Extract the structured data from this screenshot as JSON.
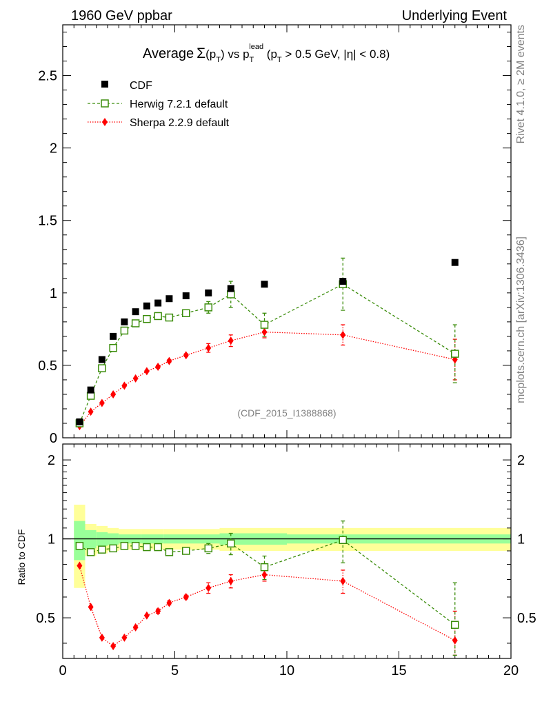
{
  "header": {
    "left": "1960 GeV ppbar",
    "right": "Underlying Event"
  },
  "side": {
    "rivet": "Rivet 4.1.0, ≥ 2M events",
    "mcplots": "mcplots.cern.ch [arXiv:1306.3436]"
  },
  "title": {
    "average": "Average",
    "sigma": "Σ",
    "pt_open": "(p",
    "T1": "T",
    "pt_close": ") vs p",
    "lead_sup": "lead",
    "T2": "T",
    "cut_open": " (p",
    "T3": "T",
    "cut_rest": " > 0.5 GeV, |η| < 0.8)"
  },
  "watermark": "(CDF_2015_I1388868)",
  "ratio_ylabel": "Ratio to CDF",
  "colors": {
    "data": "#000000",
    "herwig": "#3a8c0a",
    "sherpa": "#ff0000",
    "band_inner": "#99ff99",
    "band_outer": "#ffff99"
  },
  "chart_data": {
    "type": "scatter",
    "title": "Average Σ(pT) vs pT lead (pT > 0.5 GeV, |η| < 0.8)",
    "xlabel": "",
    "ylabel": "",
    "xlim": [
      0,
      20
    ],
    "ylim": [
      0,
      2.85
    ],
    "xticks": [
      0,
      5,
      10,
      15,
      20
    ],
    "yticks": [
      0.5,
      1,
      1.5,
      2,
      2.5
    ],
    "x": [
      0.75,
      1.25,
      1.75,
      2.25,
      2.75,
      3.25,
      3.75,
      4.25,
      4.75,
      5.5,
      6.5,
      7.5,
      9,
      12.5,
      17.5
    ],
    "xerr": [
      0.25,
      0.25,
      0.25,
      0.25,
      0.25,
      0.25,
      0.25,
      0.25,
      0.25,
      0.5,
      0.5,
      0.5,
      1,
      2.5,
      2.5
    ],
    "series": [
      {
        "name": "CDF",
        "marker": "filled-square",
        "values": [
          0.11,
          0.33,
          0.54,
          0.7,
          0.8,
          0.87,
          0.91,
          0.93,
          0.96,
          0.98,
          1.0,
          1.03,
          1.06,
          1.08,
          1.21
        ],
        "rel_err_stat": [
          0.17,
          0.08,
          0.06,
          0.05,
          0.04,
          0.04,
          0.04,
          0.04,
          0.04,
          0.04,
          0.04,
          0.05,
          0.05,
          0.04,
          0.04
        ],
        "rel_err_total": [
          0.35,
          0.14,
          0.12,
          0.1,
          0.09,
          0.09,
          0.09,
          0.09,
          0.09,
          0.09,
          0.09,
          0.1,
          0.1,
          0.1,
          0.1
        ]
      },
      {
        "name": "Herwig 7.2.1 default",
        "marker": "open-square",
        "line": "dashed",
        "values": [
          0.1,
          0.29,
          0.48,
          0.62,
          0.74,
          0.79,
          0.82,
          0.84,
          0.83,
          0.86,
          0.9,
          0.99,
          0.78,
          1.06,
          0.58
        ],
        "errors": [
          0,
          0,
          0,
          0,
          0,
          0.01,
          0.01,
          0.01,
          0.01,
          0.02,
          0.04,
          0.09,
          0.08,
          0.18,
          0.2
        ],
        "ratio": [
          0.94,
          0.89,
          0.91,
          0.92,
          0.94,
          0.94,
          0.93,
          0.93,
          0.89,
          0.9,
          0.92,
          0.96,
          0.78,
          0.99,
          0.47
        ],
        "ratio_err": [
          0,
          0,
          0,
          0,
          0,
          0.01,
          0.01,
          0.01,
          0.01,
          0.02,
          0.04,
          0.09,
          0.08,
          0.18,
          0.21
        ]
      },
      {
        "name": "Sherpa 2.2.9 default",
        "marker": "filled-diamond",
        "line": "dotted",
        "values": [
          0.08,
          0.18,
          0.24,
          0.3,
          0.36,
          0.41,
          0.46,
          0.49,
          0.53,
          0.57,
          0.62,
          0.67,
          0.73,
          0.71,
          0.54
        ],
        "errors": [
          0,
          0,
          0,
          0,
          0,
          0,
          0,
          0.01,
          0.01,
          0.01,
          0.03,
          0.04,
          0.04,
          0.07,
          0.14
        ],
        "ratio": [
          0.79,
          0.55,
          0.42,
          0.39,
          0.42,
          0.46,
          0.51,
          0.53,
          0.57,
          0.6,
          0.65,
          0.69,
          0.73,
          0.69,
          0.41
        ],
        "ratio_err": [
          0,
          0,
          0,
          0,
          0,
          0,
          0,
          0.01,
          0.01,
          0.01,
          0.03,
          0.04,
          0.04,
          0.07,
          0.12
        ]
      }
    ],
    "ratio_panel": {
      "ylabel": "Ratio to CDF",
      "ylim": [
        0.35,
        2.3
      ],
      "yticks": [
        0.5,
        1,
        2
      ],
      "ytick_labels": [
        "0.5",
        "1",
        "2"
      ]
    }
  }
}
